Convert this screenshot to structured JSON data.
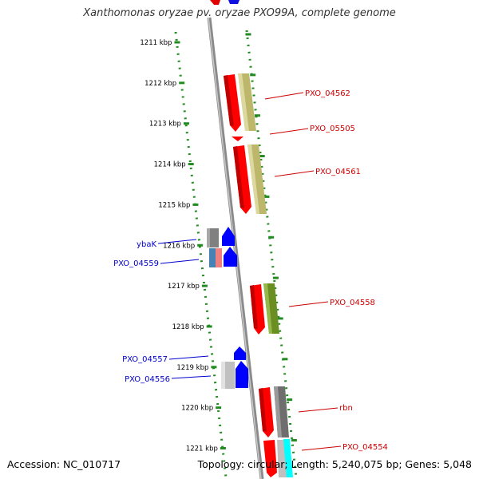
{
  "title": "Xanthomonas oryzae pv. oryzae PXO99A, complete genome",
  "footer": {
    "accession": "Accession: NC_010717",
    "summary": "Topology: circular; Length: 5,240,075 bp; Genes: 5,048"
  },
  "colors": {
    "forward_gene": "#ff0000",
    "reverse_gene": "#0000ff",
    "khaki": "#bdb76b",
    "olive": "#6b8e23",
    "gray": "#808080",
    "cyan": "#00ffff",
    "tick_green": "#228b22"
  },
  "ruler": {
    "ticks": [
      {
        "kbp": 1211,
        "label": "1211 kbp"
      },
      {
        "kbp": 1212,
        "label": "1212 kbp"
      },
      {
        "kbp": 1213,
        "label": "1213 kbp"
      },
      {
        "kbp": 1214,
        "label": "1214 kbp"
      },
      {
        "kbp": 1215,
        "label": "1215 kbp"
      },
      {
        "kbp": 1216,
        "label": "1216 kbp"
      },
      {
        "kbp": 1217,
        "label": "1217 kbp"
      },
      {
        "kbp": 1218,
        "label": "1218 kbp"
      },
      {
        "kbp": 1219,
        "label": "1219 kbp"
      },
      {
        "kbp": 1220,
        "label": "1220 kbp"
      },
      {
        "kbp": 1221,
        "label": "1221 kbp"
      }
    ]
  },
  "gene_labels": [
    {
      "name": "PXO_04562",
      "strand": "forward"
    },
    {
      "name": "PXO_05505",
      "strand": "forward"
    },
    {
      "name": "PXO_04561",
      "strand": "forward"
    },
    {
      "name": "ybaK",
      "strand": "reverse"
    },
    {
      "name": "PXO_04559",
      "strand": "reverse"
    },
    {
      "name": "PXO_04558",
      "strand": "forward"
    },
    {
      "name": "PXO_04557",
      "strand": "reverse"
    },
    {
      "name": "PXO_04556",
      "strand": "reverse"
    },
    {
      "name": "rbn",
      "strand": "forward"
    },
    {
      "name": "PXO_04554",
      "strand": "forward"
    }
  ]
}
